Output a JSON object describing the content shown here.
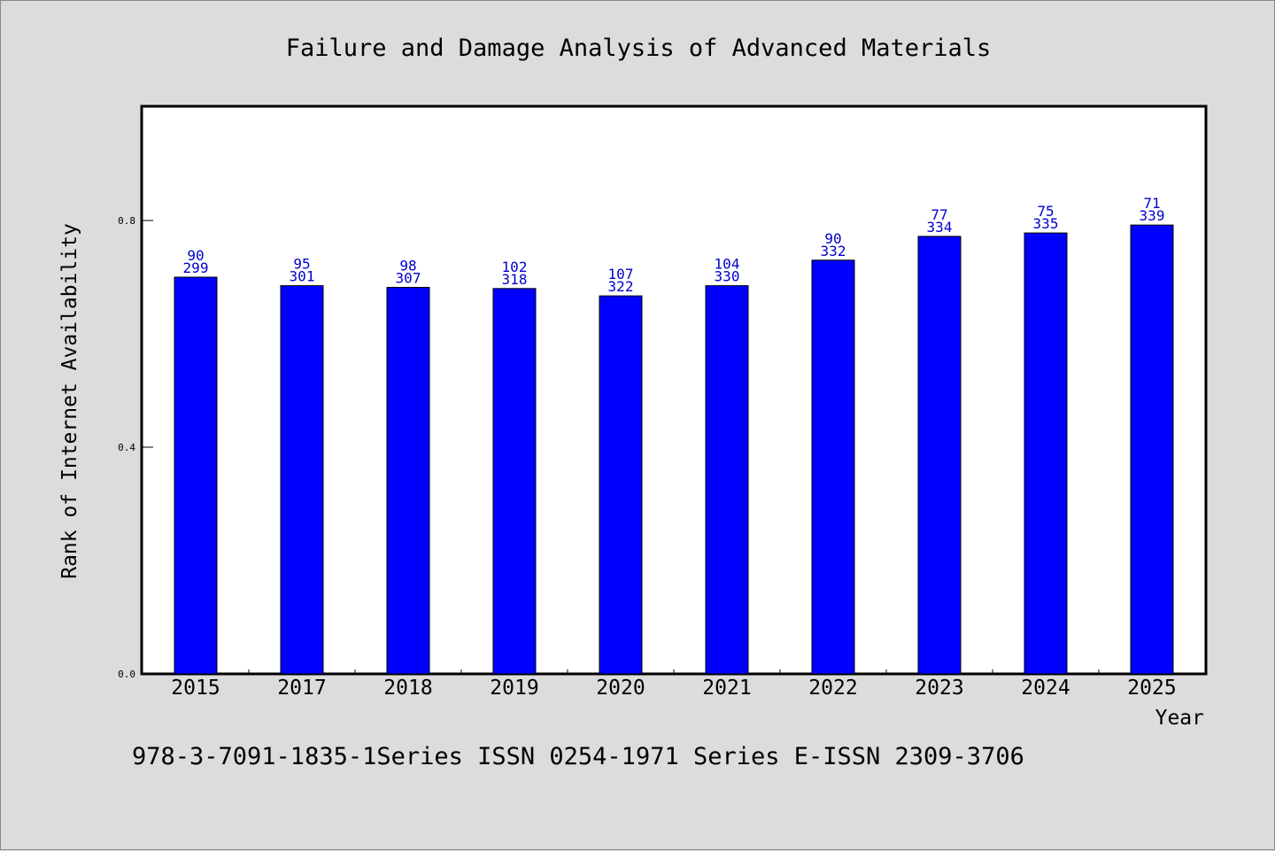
{
  "colors": {
    "bar": "#0000ff",
    "bar_stroke": "#000000",
    "data_label": "#0000cc",
    "background": "#dcdcdc",
    "plot_background": "#ffffff"
  },
  "footer_text": "978-3-7091-1835-1Series ISSN 0254-1971 Series E-ISSN 2309-3706",
  "chart_data": {
    "type": "bar",
    "title": "Failure and Damage Analysis of Advanced Materials",
    "xlabel": "Year",
    "ylabel": "Rank of Internet Availability",
    "ylim": [
      0,
      1.0
    ],
    "yticks": [
      {
        "value": 0.0,
        "label": "0.0"
      },
      {
        "value": 0.4,
        "label": "0.4"
      },
      {
        "value": 0.8,
        "label": "0.8"
      }
    ],
    "grid": false,
    "categories": [
      "2015",
      "2017",
      "2018",
      "2019",
      "2020",
      "2021",
      "2022",
      "2023",
      "2024",
      "2025"
    ],
    "values": [
      0.7,
      0.685,
      0.682,
      0.68,
      0.667,
      0.685,
      0.73,
      0.772,
      0.778,
      0.792
    ],
    "label_top": [
      "90",
      "95",
      "98",
      "102",
      "107",
      "104",
      "90",
      "77",
      "75",
      "71"
    ],
    "label_bottom": [
      "299",
      "301",
      "307",
      "318",
      "322",
      "330",
      "332",
      "334",
      "335",
      "339"
    ]
  }
}
